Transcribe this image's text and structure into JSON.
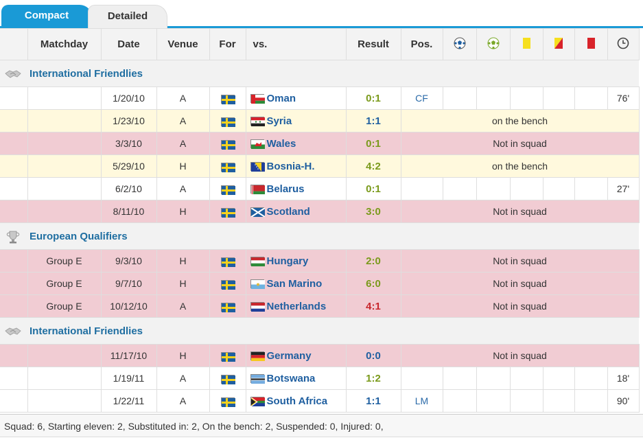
{
  "tabs": [
    {
      "label": "Compact",
      "active": true
    },
    {
      "label": "Detailed",
      "active": false
    }
  ],
  "headers": {
    "matchday": "Matchday",
    "date": "Date",
    "venue": "Venue",
    "for": "For",
    "vs": "vs.",
    "result": "Result",
    "pos": "Pos.",
    "icons": [
      "goals-icon",
      "assists-icon",
      "yellow-card-icon",
      "second-yellow-card-icon",
      "red-card-icon",
      "minutes-played-icon"
    ]
  },
  "competitions": [
    {
      "name": "International Friendlies",
      "icon": "handshake-icon",
      "matches": [
        {
          "matchday": "",
          "date": "1/20/10",
          "venue": "A",
          "opponent": "Oman",
          "flag": "oman",
          "result": "0:1",
          "result_color": "green",
          "pos": "CF",
          "minutes": "76'",
          "status": "",
          "row": "white"
        },
        {
          "matchday": "",
          "date": "1/23/10",
          "venue": "A",
          "opponent": "Syria",
          "flag": "syria",
          "result": "1:1",
          "result_color": "blue",
          "pos": "",
          "minutes": "",
          "status": "on the bench",
          "row": "yellow"
        },
        {
          "matchday": "",
          "date": "3/3/10",
          "venue": "A",
          "opponent": "Wales",
          "flag": "wales",
          "result": "0:1",
          "result_color": "green",
          "pos": "",
          "minutes": "",
          "status": "Not in squad",
          "row": "red"
        },
        {
          "matchday": "",
          "date": "5/29/10",
          "venue": "H",
          "opponent": "Bosnia-H.",
          "flag": "bosnia",
          "result": "4:2",
          "result_color": "green",
          "pos": "",
          "minutes": "",
          "status": "on the bench",
          "row": "yellow"
        },
        {
          "matchday": "",
          "date": "6/2/10",
          "venue": "A",
          "opponent": "Belarus",
          "flag": "belarus",
          "result": "0:1",
          "result_color": "green",
          "pos": "",
          "minutes": "27'",
          "status": "",
          "row": "white"
        },
        {
          "matchday": "",
          "date": "8/11/10",
          "venue": "H",
          "opponent": "Scotland",
          "flag": "scotland",
          "result": "3:0",
          "result_color": "green",
          "pos": "",
          "minutes": "",
          "status": "Not in squad",
          "row": "red"
        }
      ]
    },
    {
      "name": "European Qualifiers",
      "icon": "uefa-trophy-icon",
      "matches": [
        {
          "matchday": "Group E",
          "date": "9/3/10",
          "venue": "H",
          "opponent": "Hungary",
          "flag": "hungary",
          "result": "2:0",
          "result_color": "green",
          "pos": "",
          "minutes": "",
          "status": "Not in squad",
          "row": "red"
        },
        {
          "matchday": "Group E",
          "date": "9/7/10",
          "venue": "H",
          "opponent": "San Marino",
          "flag": "sanmarino",
          "result": "6:0",
          "result_color": "green",
          "pos": "",
          "minutes": "",
          "status": "Not in squad",
          "row": "red"
        },
        {
          "matchday": "Group E",
          "date": "10/12/10",
          "venue": "A",
          "opponent": "Netherlands",
          "flag": "netherlands",
          "result": "4:1",
          "result_color": "red",
          "pos": "",
          "minutes": "",
          "status": "Not in squad",
          "row": "red"
        }
      ]
    },
    {
      "name": "International Friendlies",
      "icon": "handshake-icon",
      "matches": [
        {
          "matchday": "",
          "date": "11/17/10",
          "venue": "H",
          "opponent": "Germany",
          "flag": "germany",
          "result": "0:0",
          "result_color": "blue",
          "pos": "",
          "minutes": "",
          "status": "Not in squad",
          "row": "red"
        },
        {
          "matchday": "",
          "date": "1/19/11",
          "venue": "A",
          "opponent": "Botswana",
          "flag": "botswana",
          "result": "1:2",
          "result_color": "green",
          "pos": "",
          "minutes": "18'",
          "status": "",
          "row": "white"
        },
        {
          "matchday": "",
          "date": "1/22/11",
          "venue": "A",
          "opponent": "South Africa",
          "flag": "southafrica",
          "result": "1:1",
          "result_color": "blue",
          "pos": "LM",
          "minutes": "90'",
          "status": "",
          "row": "white"
        }
      ]
    }
  ],
  "for_flag": "sweden",
  "colors": {
    "accent": "#1a9ad6",
    "result_green": "#7a9a1b",
    "result_blue": "#1f5fa0",
    "result_red": "#c8272d",
    "row_yellow": "#fff9dd",
    "row_red": "#f1ccd3"
  },
  "footer": "Squad: 6, Starting eleven: 2, Substituted in: 2, On the bench: 2, Suspended: 0, Injured: 0,"
}
